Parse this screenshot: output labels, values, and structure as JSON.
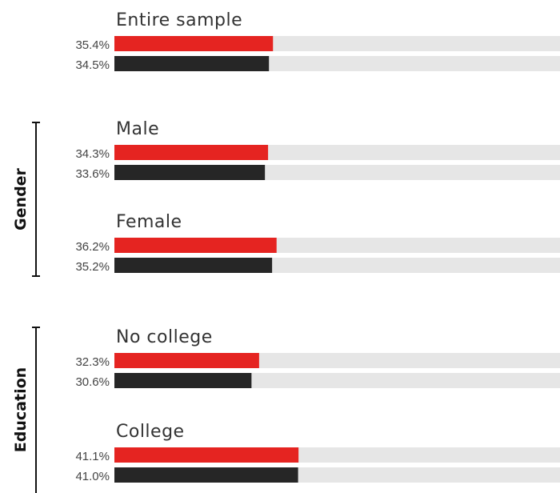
{
  "colors": {
    "series_1": "#e52421",
    "series_2": "#262626",
    "track": "#e6e6e6"
  },
  "chart_data": {
    "type": "bar",
    "orientation": "horizontal",
    "xlim": [
      0,
      100
    ],
    "grid": false,
    "legend": "none",
    "groups": [
      {
        "label": "",
        "categories": [
          "Entire sample"
        ]
      },
      {
        "label": "Gender",
        "categories": [
          "Male",
          "Female"
        ]
      },
      {
        "label": "Education",
        "categories": [
          "No college",
          "College"
        ]
      }
    ],
    "categories": [
      "Entire sample",
      "Male",
      "Female",
      "No college",
      "College"
    ],
    "series": [
      {
        "values": [
          35.4,
          34.3,
          36.2,
          32.3,
          41.1
        ],
        "labels": [
          "35.4%",
          "34.3%",
          "36.2%",
          "32.3%",
          "41.1%"
        ]
      },
      {
        "values": [
          34.5,
          33.6,
          35.2,
          30.6,
          41.0
        ],
        "labels": [
          "34.5%",
          "33.6%",
          "35.2%",
          "30.6%",
          "41.0%"
        ]
      }
    ]
  }
}
